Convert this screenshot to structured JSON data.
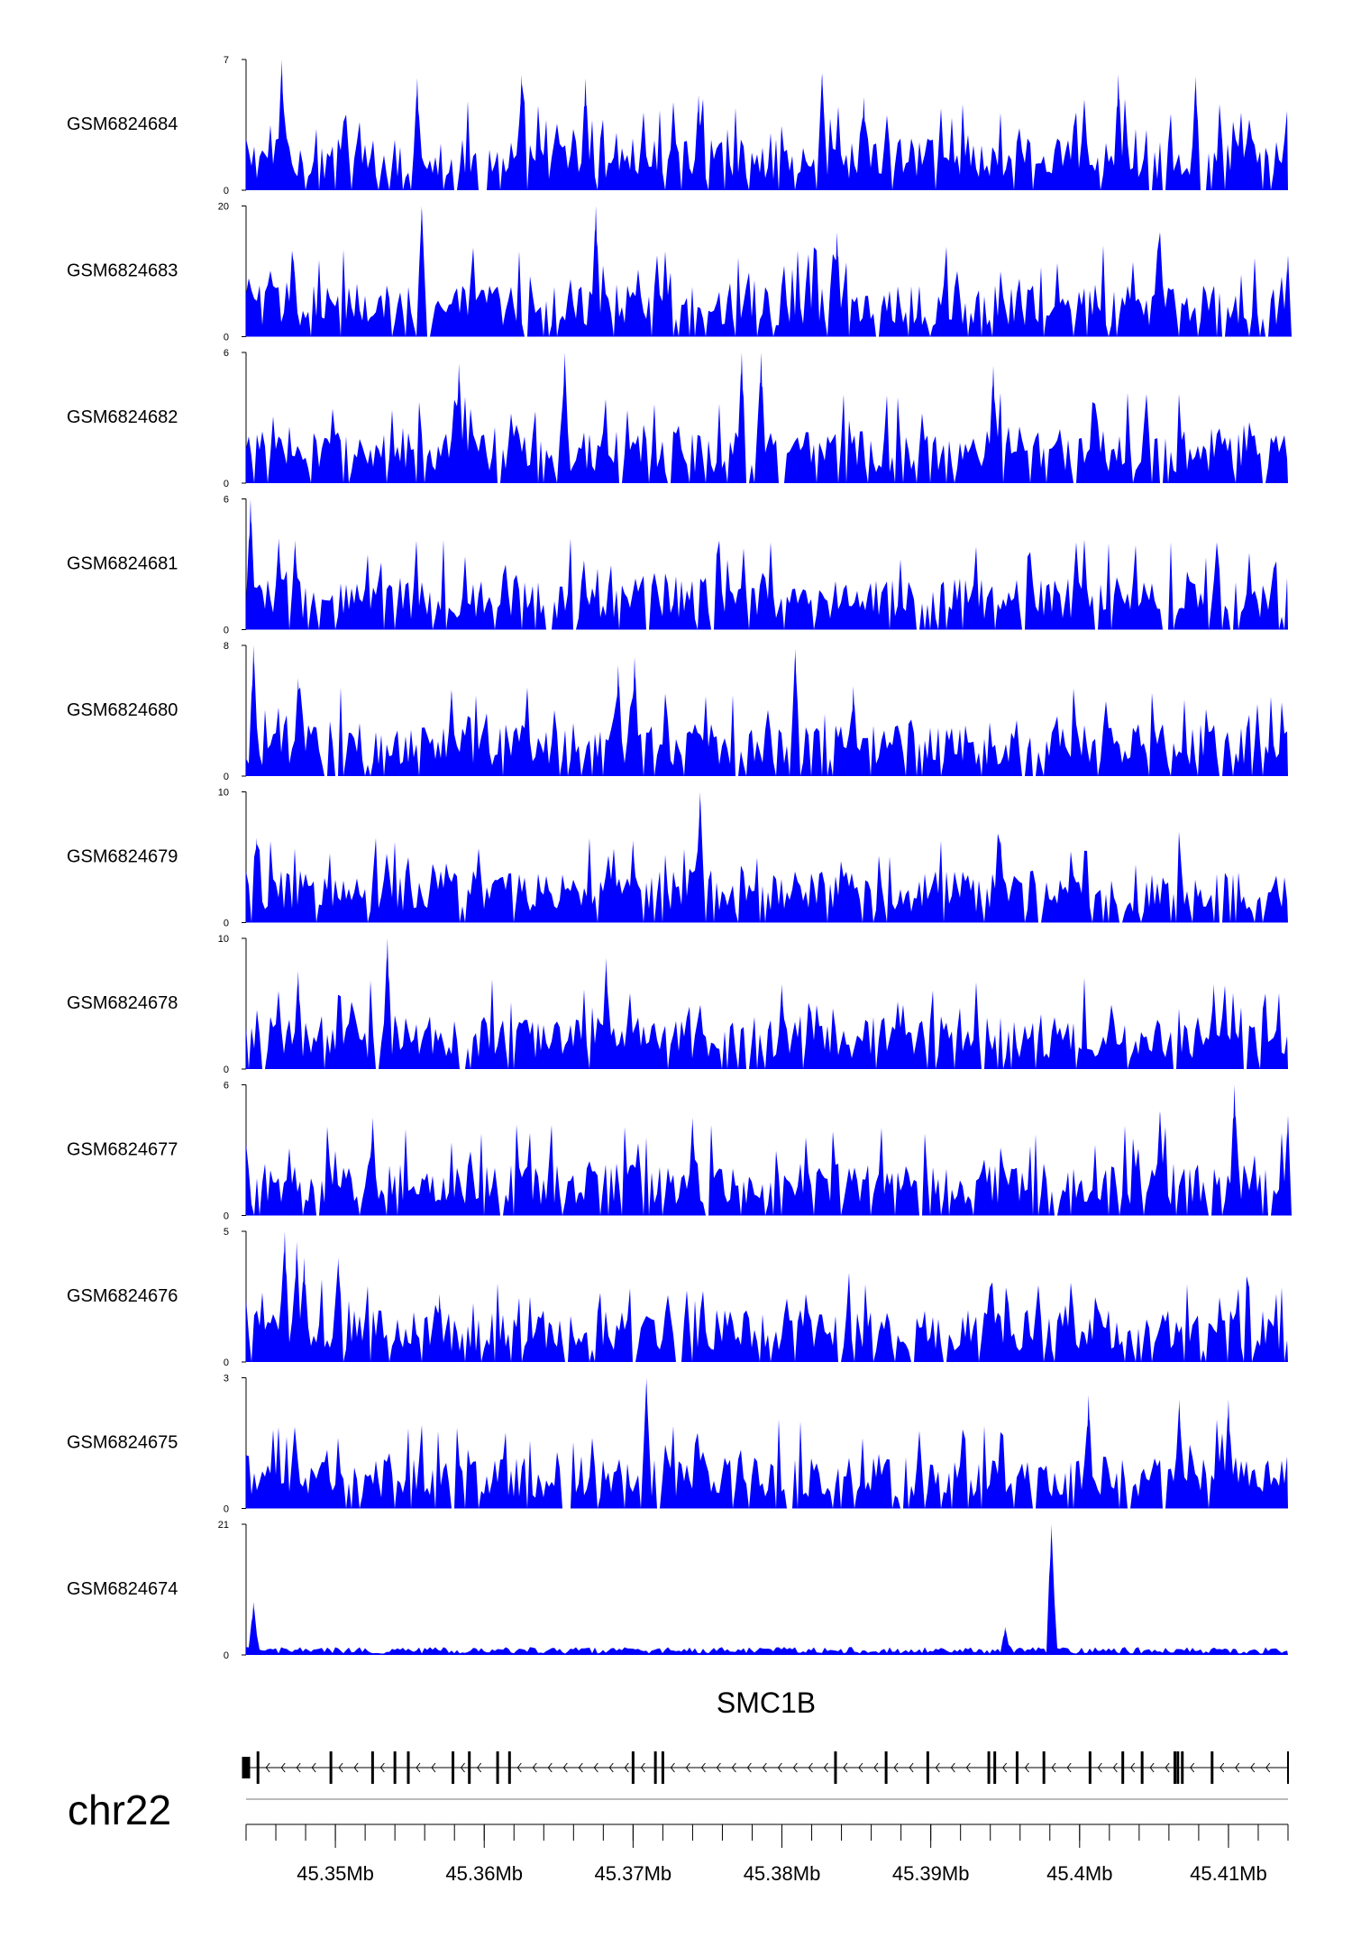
{
  "chart_data": {
    "type": "area",
    "fill_color": "#0000ff",
    "line_color": "#000000",
    "chromosome": "chr22",
    "x_range": [
      45344000,
      45414000
    ],
    "axis_ticks": [
      {
        "value": 45350000,
        "label": "45.35Mb"
      },
      {
        "value": 45360000,
        "label": "45.36Mb"
      },
      {
        "value": 45370000,
        "label": "45.37Mb"
      },
      {
        "value": 45380000,
        "label": "45.38Mb"
      },
      {
        "value": 45390000,
        "label": "45.39Mb"
      },
      {
        "value": 45400000,
        "label": "45.4Mb"
      },
      {
        "value": 45410000,
        "label": "45.41Mb"
      }
    ],
    "tracks": [
      {
        "name": "GSM6824684",
        "ymax": 7,
        "ymax_label": "7",
        "ymin_label": "0",
        "peaks": [
          [
            45346400,
            7
          ],
          [
            45355500,
            6
          ],
          [
            45362500,
            6.2
          ],
          [
            45366800,
            6
          ],
          [
            45374400,
            5.1
          ],
          [
            45382700,
            6.3
          ],
          [
            45385500,
            5
          ],
          [
            45402600,
            6.2
          ],
          [
            45407800,
            6.1
          ]
        ]
      },
      {
        "name": "GSM6824683",
        "ymax": 20,
        "ymax_label": "20",
        "ymin_label": "0",
        "peaks": [
          [
            45347200,
            12
          ],
          [
            45355800,
            20
          ],
          [
            45367500,
            20
          ],
          [
            45383700,
            16
          ],
          [
            45405400,
            16
          ],
          [
            45414000,
            12.5
          ]
        ]
      },
      {
        "name": "GSM6824682",
        "ymax": 6,
        "ymax_label": "6",
        "ymin_label": "0",
        "peaks": [
          [
            45358300,
            5.5
          ],
          [
            45365400,
            6
          ],
          [
            45377300,
            6
          ],
          [
            45378600,
            6
          ],
          [
            45394200,
            5.4
          ]
        ]
      },
      {
        "name": "GSM6824681",
        "ymax": 6,
        "ymax_label": "6",
        "ymin_label": "0",
        "peaks": [
          [
            45344300,
            6
          ],
          [
            45346200,
            4.2
          ],
          [
            45347300,
            4.1
          ],
          [
            45366700,
            3.2
          ]
        ]
      },
      {
        "name": "GSM6824680",
        "ymax": 8,
        "ymax_label": "8",
        "ymin_label": "0",
        "peaks": [
          [
            45344500,
            8
          ],
          [
            45347500,
            6
          ],
          [
            45357800,
            5.3
          ],
          [
            45369000,
            6.8
          ],
          [
            45370100,
            7.3
          ],
          [
            45380900,
            7.8
          ],
          [
            45384800,
            5.5
          ]
        ]
      },
      {
        "name": "GSM6824679",
        "ymax": 10,
        "ymax_label": "10",
        "ymin_label": "0",
        "peaks": [
          [
            45344700,
            6.5
          ],
          [
            45370000,
            6.3
          ],
          [
            45374500,
            10
          ],
          [
            45373800,
            4.2
          ],
          [
            45394700,
            6.3
          ]
        ]
      },
      {
        "name": "GSM6824678",
        "ymax": 10,
        "ymax_label": "10",
        "ymin_label": "0",
        "peaks": [
          [
            45347500,
            7.5
          ],
          [
            45353500,
            10
          ],
          [
            45368200,
            8.5
          ],
          [
            45380000,
            6.5
          ],
          [
            45409000,
            6.5
          ]
        ]
      },
      {
        "name": "GSM6824677",
        "ymax": 6,
        "ymax_label": "6",
        "ymin_label": "0",
        "peaks": [
          [
            45352500,
            4.5
          ],
          [
            45374000,
            4.5
          ],
          [
            45405400,
            4.8
          ],
          [
            45410400,
            6
          ],
          [
            45414000,
            4.6
          ]
        ]
      },
      {
        "name": "GSM6824676",
        "ymax": 5,
        "ymax_label": "5",
        "ymin_label": "0",
        "peaks": [
          [
            45346600,
            5
          ],
          [
            45347400,
            4.6
          ],
          [
            45347900,
            4
          ],
          [
            45350200,
            4
          ],
          [
            45357000,
            2.6
          ]
        ]
      },
      {
        "name": "GSM6824675",
        "ymax": 3,
        "ymax_label": "3",
        "ymin_label": "0",
        "peaks": [
          [
            45370900,
            3
          ],
          [
            45400600,
            2.6
          ],
          [
            45406700,
            2.5
          ],
          [
            45410000,
            2.5
          ]
        ]
      },
      {
        "name": "GSM6824674",
        "ymax": 21,
        "ymax_label": "21",
        "ymin_label": "0",
        "peaks": [
          [
            45344500,
            8.5
          ],
          [
            45398100,
            21
          ],
          [
            45395000,
            4.5
          ]
        ]
      }
    ],
    "gene": {
      "name": "SMC1B",
      "strand": "-",
      "start": 45344000,
      "end": 45414000,
      "exons": [
        45344000,
        45344800,
        45349700,
        45352500,
        45354000,
        45354900,
        45357900,
        45359000,
        45360900,
        45361700,
        45370000,
        45371500,
        45372000,
        45383600,
        45387000,
        45389800,
        45393900,
        45394300,
        45395800,
        45397600,
        45400700,
        45402900,
        45404200,
        45406400,
        45406600,
        45406900,
        45408900,
        45414000
      ]
    }
  }
}
